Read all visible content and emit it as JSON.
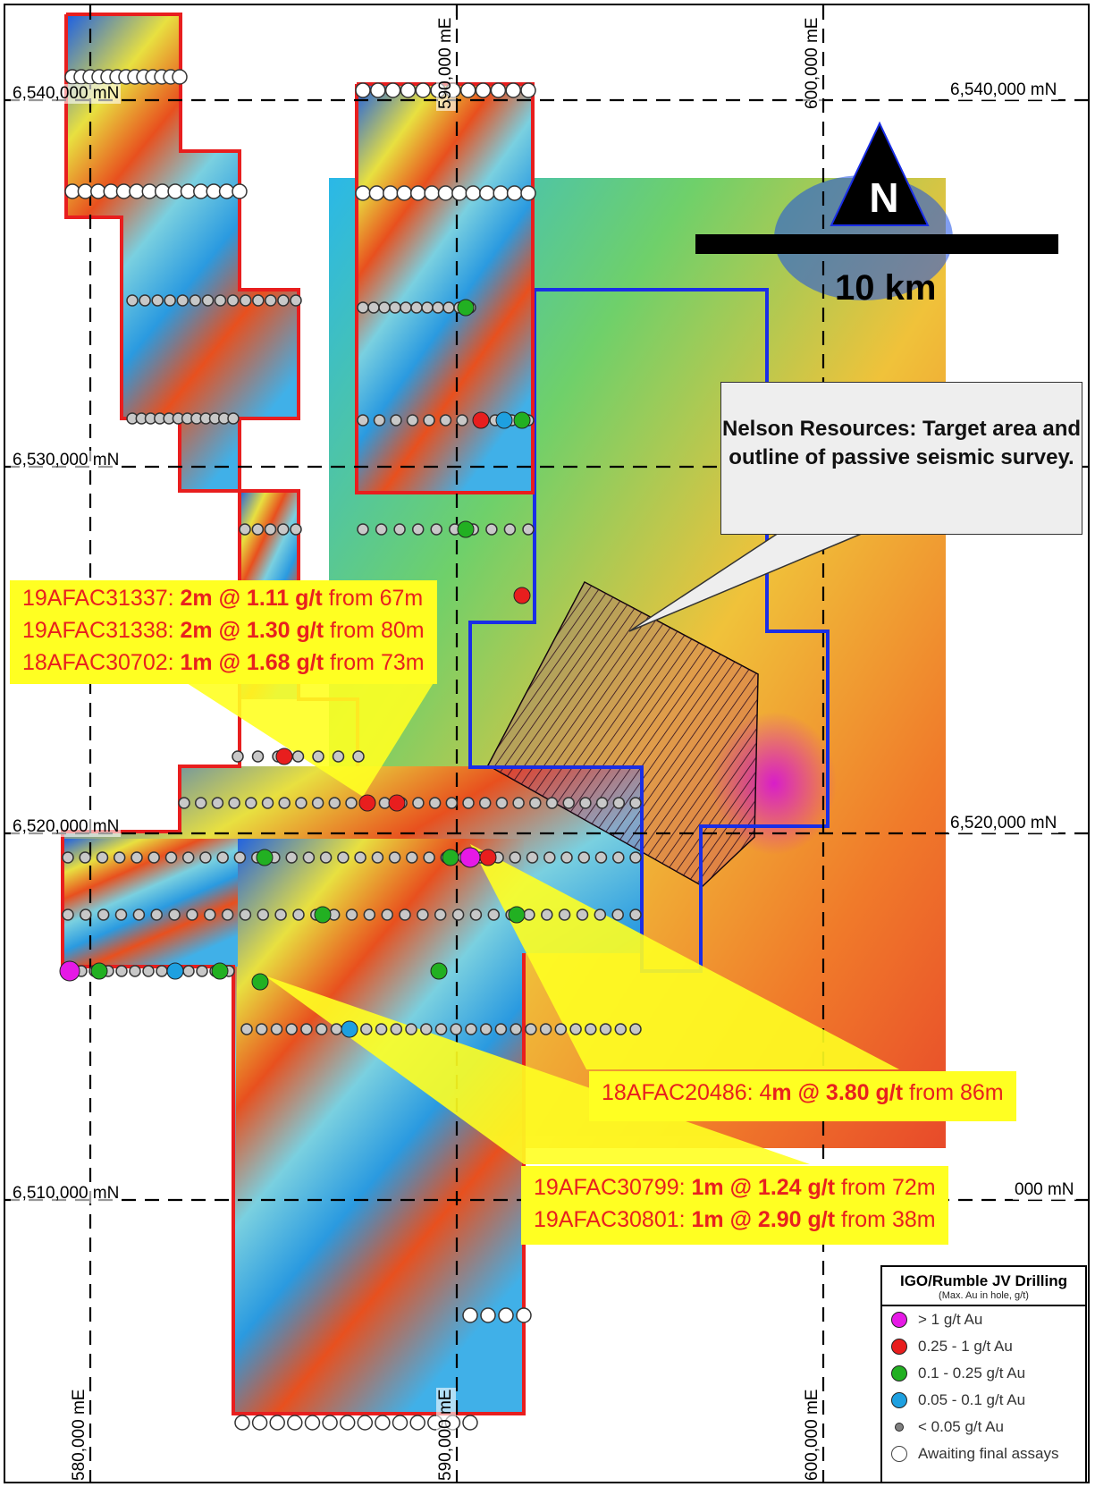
{
  "grid": {
    "northings": [
      "6,540,000 mN",
      "6,530,000 mN",
      "6,520,000 mN",
      "6,510,000 mN"
    ],
    "northings_right": [
      "6,540,000 mN",
      "6,520,000 mN",
      "000 mN"
    ],
    "eastings": [
      "580,000 mE",
      "590,000 mE",
      "600,000 mE"
    ]
  },
  "north_arrow": {
    "letter": "N"
  },
  "scale_bar": {
    "label": "10 km"
  },
  "target_box": {
    "text": "Nelson Resources: Target area and outline of passive seismic survey."
  },
  "callouts": [
    {
      "lines": [
        {
          "hole": "19AFAC31337: ",
          "interval": "2m @ 1.11 g/t",
          "depth": " from 67m"
        },
        {
          "hole": "19AFAC31338: ",
          "interval": "2m @ 1.30 g/t",
          "depth": " from 80m"
        },
        {
          "hole": "18AFAC30702: ",
          "interval": "1m @ 1.68 g/t",
          "depth": " from 73m"
        }
      ]
    },
    {
      "lines": [
        {
          "hole": "18AFAC20486: 4",
          "interval": "m @ 3.80 g/t",
          "depth": " from 86m"
        }
      ]
    },
    {
      "lines": [
        {
          "hole": "19AFAC30799: ",
          "interval": "1m @ 1.24 g/t",
          "depth": " from 72m"
        },
        {
          "hole": "19AFAC30801: ",
          "interval": "1m @ 2.90 g/t",
          "depth": " from 38m"
        }
      ]
    }
  ],
  "legend": {
    "title": "IGO/Rumble JV Drilling",
    "subtitle": "(Max. Au in hole, g/t)",
    "items": [
      {
        "label": "> 1 g/t Au",
        "color": "#e619e6"
      },
      {
        "label": "0.25 - 1 g/t Au",
        "color": "#e81e1e"
      },
      {
        "label": "0.1 - 0.25 g/t Au",
        "color": "#22b022"
      },
      {
        "label": "0.05 - 0.1 g/t Au",
        "color": "#1ea0e0"
      },
      {
        "label": "< 0.05 g/t Au",
        "color": "#808080"
      },
      {
        "label": "Awaiting final assays",
        "color": "#ffffff"
      }
    ]
  },
  "colors": {
    "tenement_outline": "#e81e1e",
    "survey_outline": "#1a2ee6",
    "callout_fill": "#ffff22",
    "callout_text": "#e8201e"
  }
}
